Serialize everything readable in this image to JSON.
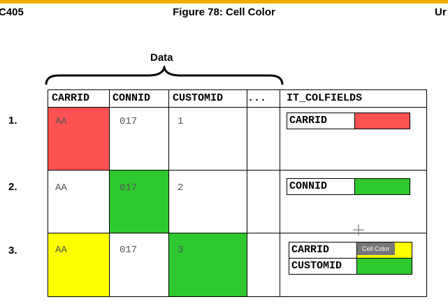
{
  "header": {
    "left": "C405",
    "title": "Figure 78: Cell Color",
    "right": "Ur"
  },
  "figure": {
    "brace_label": "Data",
    "columns": [
      "CARRID",
      "CONNID",
      "CUSTOMID",
      "...",
      "IT_COLFIELDS"
    ],
    "rows": [
      {
        "number": "1.",
        "cells": [
          "AA",
          "017",
          "1"
        ],
        "colfields": [
          {
            "name": "CARRID",
            "color": "#fe5151"
          }
        ]
      },
      {
        "number": "2.",
        "cells": [
          "AA",
          "017",
          "2"
        ],
        "colfields": [
          {
            "name": "CONNID",
            "color": "#2ec92e"
          }
        ]
      },
      {
        "number": "3.",
        "cells": [
          "AA",
          "017",
          "3"
        ],
        "colfields": [
          {
            "name": "CARRID",
            "color": "#ffff00"
          },
          {
            "name": "CUSTOMID",
            "color": "#2ec92e"
          }
        ]
      }
    ],
    "cell_colors": {
      "red": "#fe5151",
      "green": "#2ec92e",
      "yellow": "#ffff00"
    },
    "tooltip": "Cell Color"
  }
}
